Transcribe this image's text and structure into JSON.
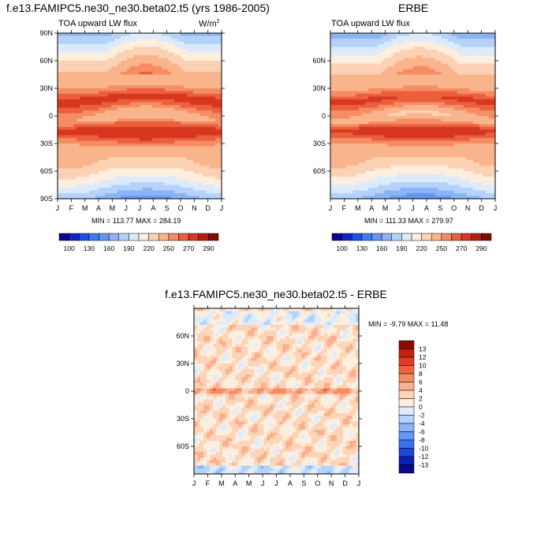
{
  "panel_left": {
    "title": "f.e13.FAMIPC5.ne30_ne30.beta02.t5 (yrs 1986-2005)",
    "subtitle": "TOA upward LW flux",
    "units_base": "W/m",
    "units_sup": "2",
    "stats": "MIN = 113.77 MAX = 284.19"
  },
  "panel_right": {
    "title": "ERBE",
    "subtitle": "TOA upward LW flux",
    "stats": "MIN = 111.33 MAX = 279.97"
  },
  "panel_diff": {
    "title": "f.e13.FAMIPC5.ne30_ne30.beta02.t5 - ERBE",
    "stats": "MIN =  -9.79 MAX =  11.48"
  },
  "colors": {
    "abs_scale": [
      "#0a0a8c",
      "#0f23c8",
      "#1e50e6",
      "#3c7cf0",
      "#6496f0",
      "#8cb4f5",
      "#b4d2fa",
      "#dcebfc",
      "#fdeede",
      "#fcd2b4",
      "#fab48c",
      "#f58c64",
      "#eb5f3c",
      "#d7371e",
      "#b41e0f",
      "#820a05"
    ],
    "diff_scale": [
      "#0a0a8c",
      "#0a1eb4",
      "#1e46dc",
      "#3c6ef0",
      "#6496f5",
      "#8cb4f8",
      "#b4d2fb",
      "#dcebfd",
      "#fdefe0",
      "#fcd4b8",
      "#f9b08e",
      "#f58c64",
      "#ee6440",
      "#dc3c20",
      "#c81e0a",
      "#8c0a05"
    ]
  },
  "chart_data": [
    {
      "type": "heatmap",
      "name": "model",
      "title": "f.e13.FAMIPC5.ne30_ne30.beta02.t5 (yrs 1986-2005)",
      "subtitle": "TOA upward LW flux",
      "units": "W/m2",
      "x_ticks": [
        "J",
        "F",
        "M",
        "A",
        "M",
        "J",
        "J",
        "A",
        "S",
        "O",
        "N",
        "D",
        "J"
      ],
      "y_ticks": [
        "90N",
        "60N",
        "30N",
        "0",
        "30S",
        "60S",
        "90S"
      ],
      "y_values": [
        90,
        60,
        30,
        0,
        -30,
        -60,
        -90
      ],
      "ylim": [
        -90,
        90
      ],
      "levels": [
        100,
        130,
        160,
        190,
        220,
        250,
        270,
        290
      ],
      "colorbar_labels": [
        "100",
        "130",
        "160",
        "190",
        "220",
        "250",
        "270",
        "290"
      ],
      "min": 113.77,
      "max": 284.19
    },
    {
      "type": "heatmap",
      "name": "obs",
      "title": "ERBE",
      "subtitle": "TOA upward LW flux",
      "x_ticks": [
        "J",
        "F",
        "M",
        "A",
        "M",
        "J",
        "J",
        "A",
        "S",
        "O",
        "N",
        "D",
        "J"
      ],
      "y_ticks": [
        "60N",
        "30N",
        "0",
        "30S",
        "60S"
      ],
      "y_values": [
        60,
        30,
        0,
        -30,
        -60
      ],
      "ylim": [
        -90,
        90
      ],
      "colorbar_labels": [
        "100",
        "130",
        "160",
        "190",
        "220",
        "250",
        "270",
        "290"
      ],
      "min": 111.33,
      "max": 279.97
    },
    {
      "type": "heatmap",
      "name": "difference",
      "title": "f.e13.FAMIPC5.ne30_ne30.beta02.t5 - ERBE",
      "x_ticks": [
        "J",
        "F",
        "M",
        "A",
        "M",
        "J",
        "J",
        "A",
        "S",
        "O",
        "N",
        "D",
        "J"
      ],
      "y_ticks": [
        "60N",
        "30N",
        "0",
        "30S",
        "60S"
      ],
      "y_values": [
        60,
        30,
        0,
        -30,
        -60
      ],
      "ylim": [
        -90,
        90
      ],
      "levels": [
        -13,
        -12,
        -10,
        -8,
        -6,
        -4,
        -2,
        0,
        2,
        4,
        6,
        8,
        10,
        12,
        13
      ],
      "colorbar_labels": [
        "13",
        "12",
        "10",
        "8",
        "6",
        "4",
        "2",
        "0",
        "-2",
        "-4",
        "-6",
        "-8",
        "-10",
        "-12",
        "-13"
      ],
      "min": -9.79,
      "max": 11.48
    }
  ]
}
